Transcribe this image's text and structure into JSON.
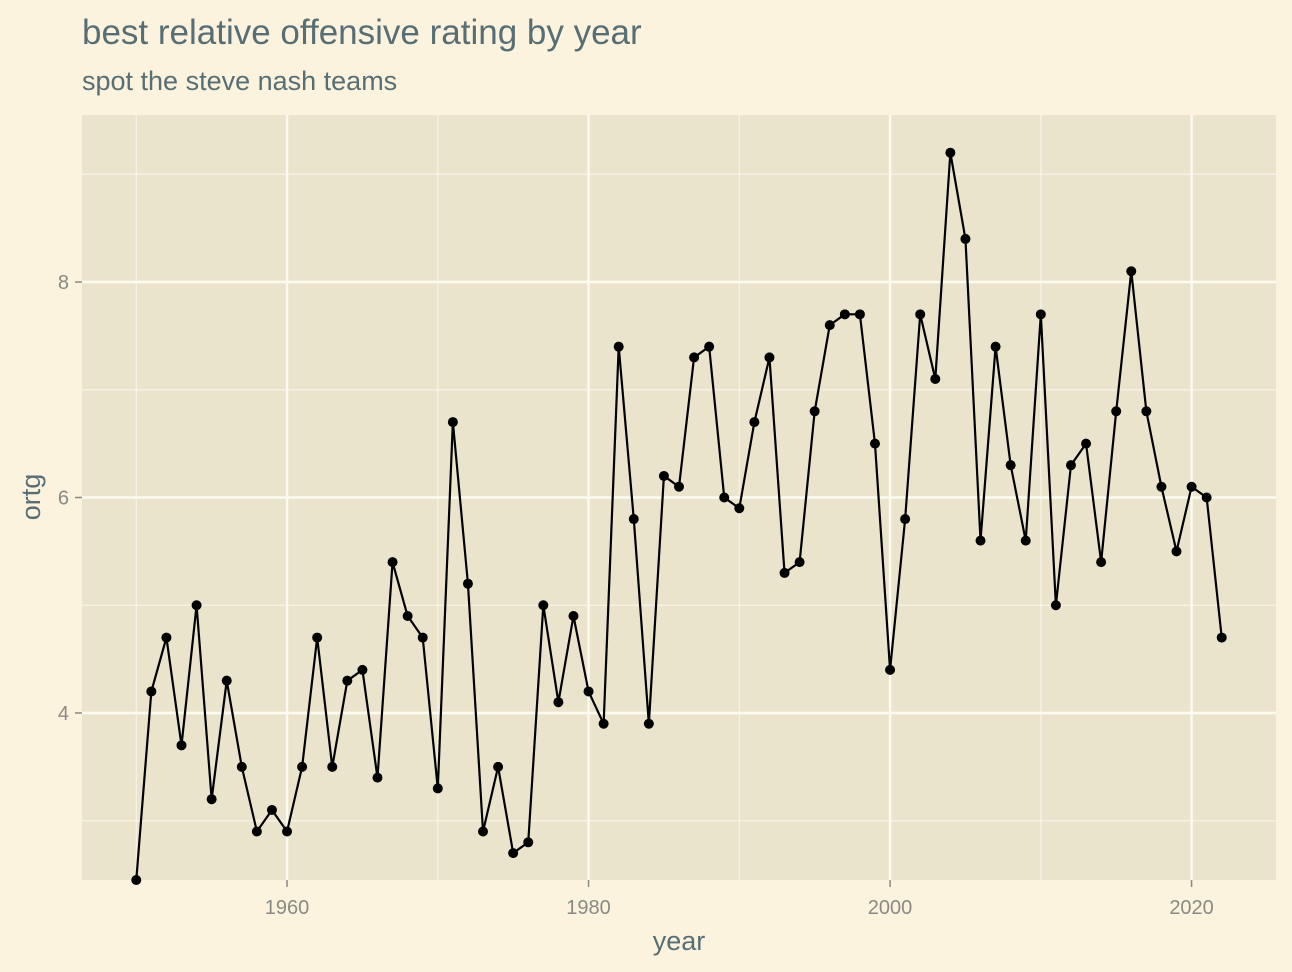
{
  "chart_data": {
    "type": "line",
    "title": "best relative offensive rating by year",
    "subtitle": "spot the steve nash teams",
    "xlabel": "year",
    "ylabel": "ortg",
    "xlim": [
      1946.4,
      2025.6
    ],
    "ylim": [
      2.45,
      9.55
    ],
    "x_ticks": [
      1960,
      1980,
      2000,
      2020
    ],
    "y_ticks": [
      4,
      6,
      8
    ],
    "grid": true,
    "legend": "none",
    "colors": {
      "page_background": "#fcf3de",
      "panel_background": "#ebe4cd",
      "grid": "#fdfaf0",
      "series": "#000000",
      "text": "#586e75",
      "ticks": "#8a8a84"
    },
    "series": [
      {
        "x": [
          1950,
          1951,
          1952,
          1953,
          1954,
          1955,
          1956,
          1957,
          1958,
          1959,
          1960,
          1961,
          1962,
          1963,
          1964,
          1965,
          1966,
          1967,
          1968,
          1969,
          1970,
          1971,
          1972,
          1973,
          1974,
          1975,
          1976,
          1977,
          1978,
          1979,
          1980,
          1981,
          1982,
          1983,
          1984,
          1985,
          1986,
          1987,
          1988,
          1989,
          1990,
          1991,
          1992,
          1993,
          1994,
          1995,
          1996,
          1997,
          1998,
          1999,
          2000,
          2001,
          2002,
          2003,
          2004,
          2005,
          2006,
          2007,
          2008,
          2009,
          2010,
          2011,
          2012,
          2013,
          2014,
          2015,
          2016,
          2017,
          2018,
          2019,
          2020,
          2021,
          2022
        ],
        "values": [
          2.45,
          4.2,
          4.7,
          3.7,
          5.0,
          3.2,
          4.3,
          3.5,
          2.9,
          3.1,
          2.9,
          3.5,
          4.7,
          3.5,
          4.3,
          4.4,
          3.4,
          5.4,
          4.9,
          4.7,
          3.3,
          6.7,
          5.2,
          2.9,
          3.5,
          2.7,
          2.8,
          5.0,
          4.1,
          4.9,
          4.2,
          3.9,
          7.4,
          5.8,
          3.9,
          6.2,
          6.1,
          7.3,
          7.4,
          6.0,
          5.9,
          6.7,
          7.3,
          5.3,
          5.4,
          6.8,
          7.6,
          7.7,
          7.7,
          6.5,
          4.4,
          5.8,
          7.7,
          7.1,
          9.2,
          8.4,
          5.6,
          7.4,
          6.3,
          5.6,
          7.7,
          5.0,
          6.3,
          6.5,
          5.4,
          6.8,
          8.1,
          6.8,
          6.1,
          5.5,
          6.1,
          6.0,
          4.7
        ]
      }
    ]
  }
}
